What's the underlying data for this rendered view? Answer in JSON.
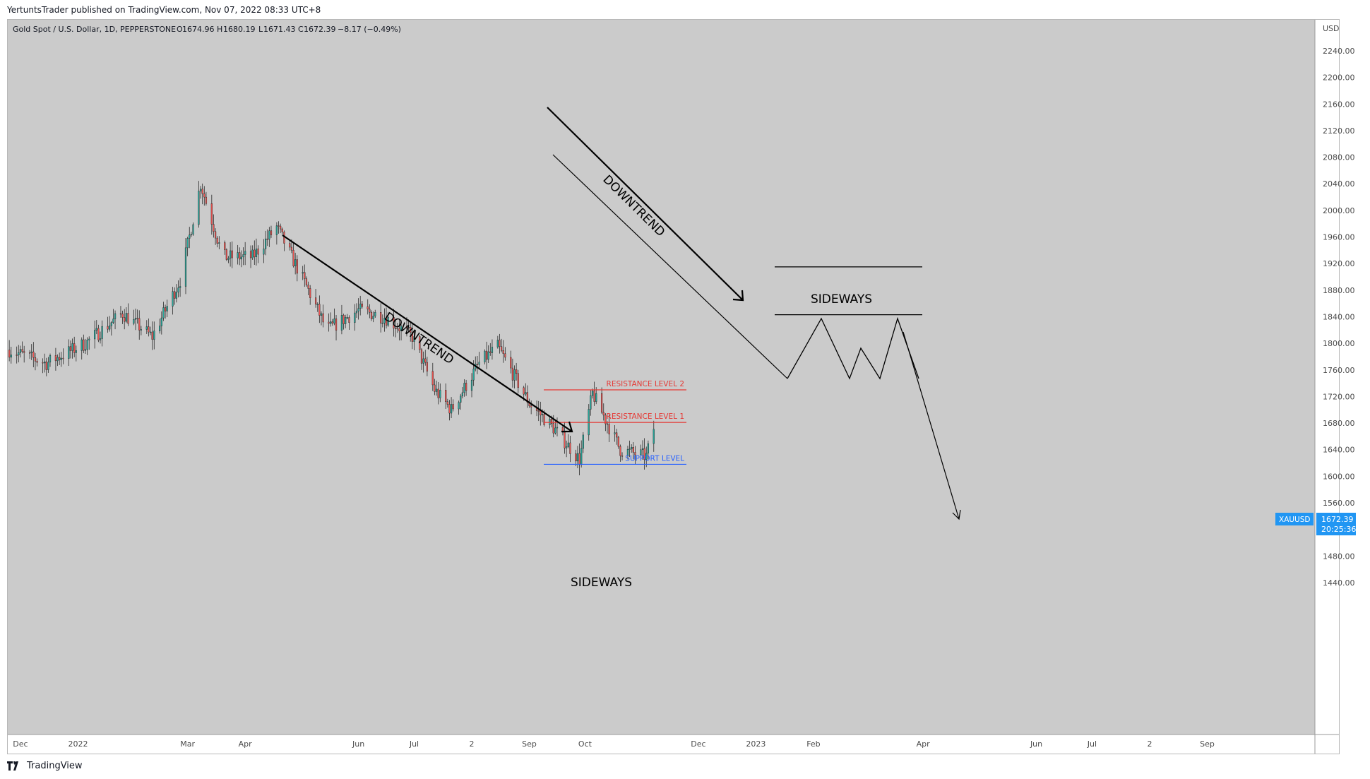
{
  "publisher_line": "YertuntsTrader published on TradingView.com, Nov 07, 2022 08:33 UTC+8",
  "footer_brand": "TradingView",
  "colors": {
    "plot_bg": "#cbcbcb",
    "up_candle": "#26a69a",
    "down_candle": "#ef5350",
    "resistance": "#e53935",
    "support": "#2962ff",
    "price_label": "#2196f3",
    "drawing": "#000000"
  },
  "chart_data": {
    "type": "candlestick",
    "title": "Gold Spot / U.S. Dollar, 1D, PEPPERSTONE",
    "ohlc_header": {
      "o_label": "O",
      "o": "1674.96",
      "h_label": "H",
      "h": "1680.19",
      "l_label": "L",
      "l": "1671.43",
      "c_label": "C",
      "c": "1672.39",
      "change": "−8.17 (−0.49%)"
    },
    "currency_label": "USD",
    "symbol": "XAUUSD",
    "last_price": "1672.39",
    "countdown": "20:25:36",
    "y_ticks": [
      "2240.00",
      "2200.00",
      "2160.00",
      "2120.00",
      "2080.00",
      "2040.00",
      "2000.00",
      "1960.00",
      "1920.00",
      "1880.00",
      "1840.00",
      "1800.00",
      "1760.00",
      "1720.00",
      "1680.00",
      "1640.00",
      "1600.00",
      "1560.00",
      "1520.00",
      "1480.00",
      "1440.00"
    ],
    "ylim": [
      1410,
      2260
    ],
    "x_ticks": [
      {
        "label": "Dec",
        "date": "2021-12-01"
      },
      {
        "label": "2022",
        "date": "2022-01-01"
      },
      {
        "label": "Mar",
        "date": "2022-03-01"
      },
      {
        "label": "Apr",
        "date": "2022-04-01"
      },
      {
        "label": "Jun",
        "date": "2022-06-01"
      },
      {
        "label": "Jul",
        "date": "2022-07-01"
      },
      {
        "label": "2",
        "date": "2022-08-01"
      },
      {
        "label": "Sep",
        "date": "2022-09-01"
      },
      {
        "label": "Oct",
        "date": "2022-10-01"
      },
      {
        "label": "Dec",
        "date": "2022-12-01"
      },
      {
        "label": "2023",
        "date": "2023-01-01"
      },
      {
        "label": "Feb",
        "date": "2023-02-01"
      },
      {
        "label": "Apr",
        "date": "2023-04-01"
      },
      {
        "label": "Jun",
        "date": "2023-06-01"
      },
      {
        "label": "Jul",
        "date": "2023-07-01"
      },
      {
        "label": "2",
        "date": "2023-08-01"
      },
      {
        "label": "Sep",
        "date": "2023-09-01"
      }
    ],
    "price_path": [
      [
        "2021-11-25",
        1790
      ],
      [
        "2021-12-15",
        1770
      ],
      [
        "2022-01-05",
        1800
      ],
      [
        "2022-01-25",
        1845
      ],
      [
        "2022-02-10",
        1810
      ],
      [
        "2022-02-25",
        1895
      ],
      [
        "2022-03-08",
        2040
      ],
      [
        "2022-03-20",
        1930
      ],
      [
        "2022-04-05",
        1930
      ],
      [
        "2022-04-18",
        1975
      ],
      [
        "2022-05-05",
        1880
      ],
      [
        "2022-05-15",
        1820
      ],
      [
        "2022-06-01",
        1850
      ],
      [
        "2022-06-15",
        1840
      ],
      [
        "2022-06-30",
        1810
      ],
      [
        "2022-07-12",
        1730
      ],
      [
        "2022-07-21",
        1700
      ],
      [
        "2022-08-05",
        1770
      ],
      [
        "2022-08-15",
        1795
      ],
      [
        "2022-09-01",
        1710
      ],
      [
        "2022-09-15",
        1670
      ],
      [
        "2022-09-28",
        1625
      ],
      [
        "2022-10-05",
        1725
      ],
      [
        "2022-10-20",
        1640
      ],
      [
        "2022-11-03",
        1630
      ],
      [
        "2022-11-07",
        1672
      ]
    ],
    "annotations": {
      "downtrend_1": "DOWNTREND",
      "downtrend_2": "DOWNTREND",
      "sideways_1": "SIDEWAYS",
      "sideways_2": "SIDEWAYS",
      "resistance_2": "RESISTANCE LEVEL 2",
      "resistance_1": "RESISTANCE LEVEL 1",
      "support": "SUPPORT LEVEL"
    },
    "levels": {
      "resistance_2": 1730,
      "resistance_1": 1681,
      "support": 1618,
      "projected_top": 1915,
      "projected_bottom": 1843
    }
  }
}
